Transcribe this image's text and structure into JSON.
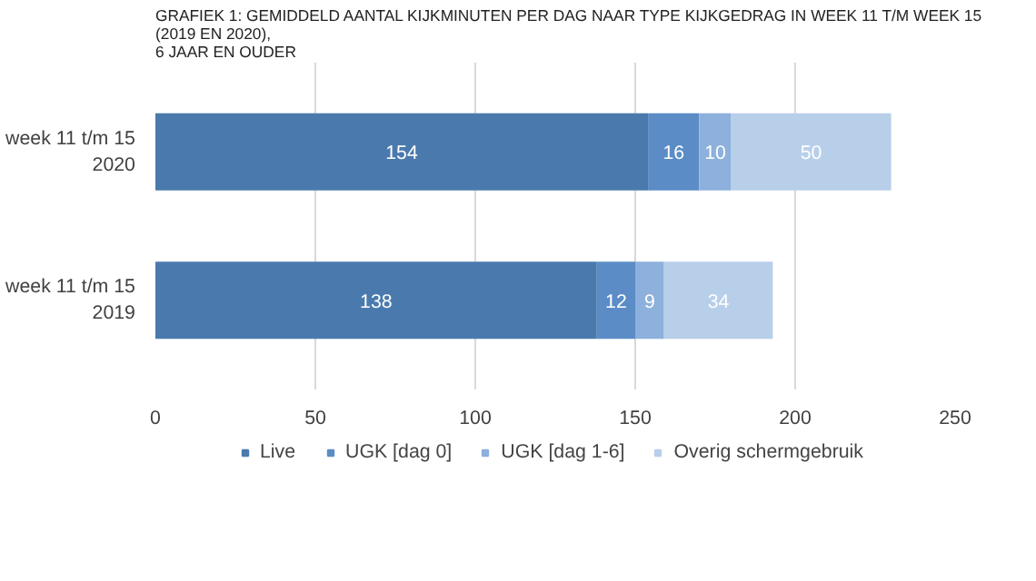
{
  "chart_data": {
    "type": "bar",
    "orientation": "horizontal",
    "stacked": true,
    "title": "GRAFIEK 1: GEMIDDELD AANTAL KIJKMINUTEN PER DAG NAAR TYPE KIJKGEDRAG IN WEEK 11 T/M WEEK 15 (2019 EN 2020),\n6 JAAR EN OUDER",
    "categories": [
      "week 11 t/m 15\n2020",
      "week 11 t/m 15\n2019"
    ],
    "series": [
      {
        "name": "Live",
        "color": "#4a7aad",
        "values": [
          154,
          138
        ]
      },
      {
        "name": "UGK [dag 0]",
        "color": "#5b8cc6",
        "values": [
          16,
          12
        ]
      },
      {
        "name": "UGK [dag 1-6]",
        "color": "#8db0dc",
        "values": [
          10,
          9
        ]
      },
      {
        "name": "Overig schermgebruik",
        "color": "#b8cfea",
        "values": [
          50,
          34
        ]
      }
    ],
    "xlim": [
      0,
      250
    ],
    "xticks": [
      0,
      50,
      100,
      150,
      200,
      250
    ],
    "grid": "x",
    "legend": "bottom",
    "data_labels": true
  }
}
